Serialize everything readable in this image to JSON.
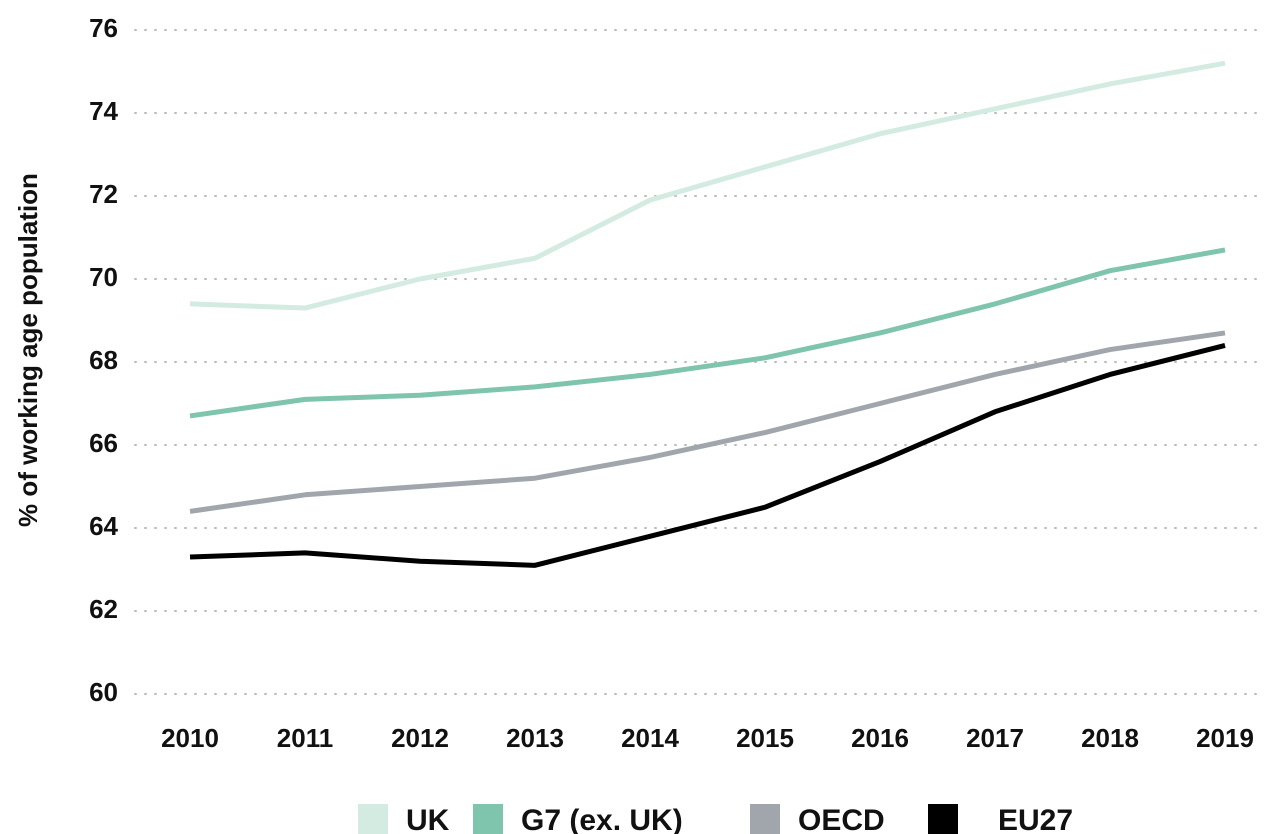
{
  "chart_data": {
    "type": "line",
    "y_label": "% of working age population",
    "categories": [
      "2010",
      "2011",
      "2012",
      "2013",
      "2014",
      "2015",
      "2016",
      "2017",
      "2018",
      "2019"
    ],
    "series": [
      {
        "name": "UK",
        "color": "#d4ebe1",
        "values": [
          69.4,
          69.3,
          70.0,
          70.5,
          71.9,
          72.7,
          73.5,
          74.1,
          74.7,
          75.2
        ]
      },
      {
        "name": "G7 (ex. UK)",
        "color": "#7fc4ad",
        "values": [
          66.7,
          67.1,
          67.2,
          67.4,
          67.7,
          68.1,
          68.7,
          69.4,
          70.2,
          70.7
        ]
      },
      {
        "name": "OECD",
        "color": "#a1a6ad",
        "values": [
          64.4,
          64.8,
          65.0,
          65.2,
          65.7,
          66.3,
          67.0,
          67.7,
          68.3,
          68.7
        ]
      },
      {
        "name": "EU27",
        "color": "#000000",
        "values": [
          63.3,
          63.4,
          63.2,
          63.1,
          63.8,
          64.5,
          65.6,
          66.8,
          67.7,
          68.4
        ]
      }
    ],
    "ylim": [
      60,
      76
    ],
    "yticks": [
      60,
      62,
      64,
      66,
      68,
      70,
      72,
      74,
      76
    ],
    "grid": true
  }
}
